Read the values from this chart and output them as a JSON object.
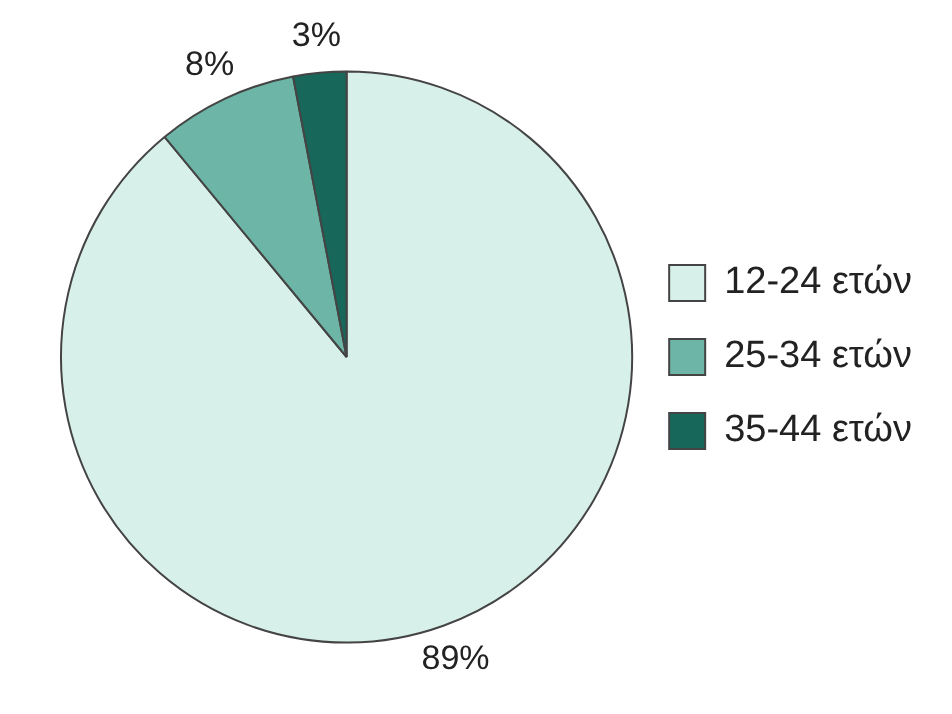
{
  "chart_data": {
    "type": "pie",
    "categories": [
      "12-24 ετών",
      "25-34 ετών",
      "35-44 ετών"
    ],
    "values": [
      89,
      8,
      3
    ],
    "colors": [
      "#d8f0ea",
      "#6db5a6",
      "#17675a"
    ],
    "value_labels": [
      "89%",
      "8%",
      "3%"
    ],
    "legend": "right"
  }
}
